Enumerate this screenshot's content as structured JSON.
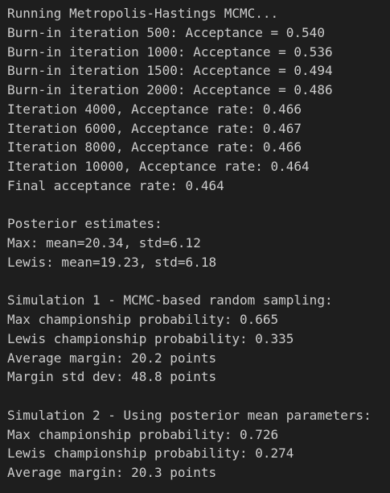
{
  "terminal": {
    "sections": [
      {
        "lines": [
          "Running Metropolis-Hastings MCMC...",
          "Burn-in iteration 500: Acceptance = 0.540",
          "Burn-in iteration 1000: Acceptance = 0.536",
          "Burn-in iteration 1500: Acceptance = 0.494",
          "Burn-in iteration 2000: Acceptance = 0.486",
          "Iteration 4000, Acceptance rate: 0.466",
          "Iteration 6000, Acceptance rate: 0.467",
          "Iteration 8000, Acceptance rate: 0.466",
          "Iteration 10000, Acceptance rate: 0.464",
          "Final acceptance rate: 0.464"
        ]
      },
      {
        "lines": [
          "Posterior estimates:",
          "Max: mean=20.34, std=6.12",
          "Lewis: mean=19.23, std=6.18"
        ]
      },
      {
        "lines": [
          "Simulation 1 - MCMC-based random sampling:",
          "Max championship probability: 0.665",
          "Lewis championship probability: 0.335",
          "Average margin: 20.2 points",
          "Margin std dev: 48.8 points"
        ]
      },
      {
        "lines": [
          "Simulation 2 - Using posterior mean parameters:",
          "Max championship probability: 0.726",
          "Lewis championship probability: 0.274",
          "Average margin: 20.3 points"
        ]
      }
    ]
  }
}
